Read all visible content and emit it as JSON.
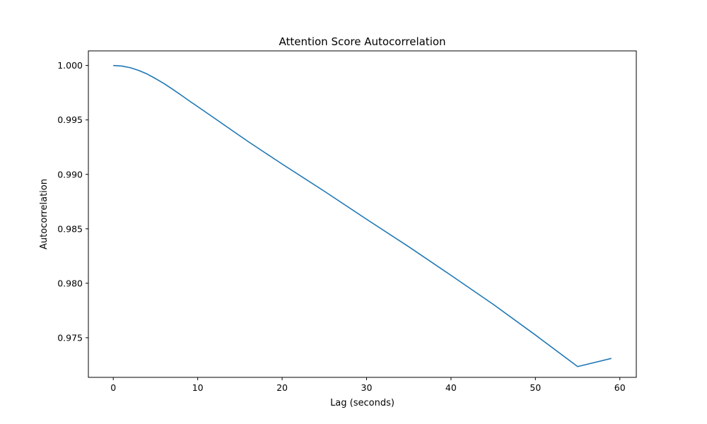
{
  "chart_data": {
    "type": "line",
    "title": "Attention Score Autocorrelation",
    "xlabel": "Lag (seconds)",
    "ylabel": "Autocorrelation",
    "xlim": [
      -2.95,
      61.95
    ],
    "ylim": [
      0.97136,
      1.00134
    ],
    "xticks": [
      0,
      10,
      20,
      30,
      40,
      50,
      60
    ],
    "yticks": [
      0.975,
      0.98,
      0.985,
      0.99,
      0.995,
      1.0
    ],
    "xtick_labels": [
      "0",
      "10",
      "20",
      "30",
      "40",
      "50",
      "60"
    ],
    "ytick_labels": [
      "0.975",
      "0.980",
      "0.985",
      "0.990",
      "0.995",
      "1.000"
    ],
    "grid": false,
    "line_color": "#1f77b4",
    "series": [
      {
        "x": [
          0,
          1,
          2,
          3,
          4,
          5,
          6,
          7,
          8,
          9,
          10,
          12,
          14,
          16,
          18,
          20,
          25,
          30,
          35,
          40,
          45,
          50,
          55,
          59
        ],
        "y": [
          1.0,
          0.99995,
          0.9998,
          0.99955,
          0.99922,
          0.9988,
          0.99834,
          0.99783,
          0.9973,
          0.99675,
          0.99622,
          0.99515,
          0.99407,
          0.993,
          0.99197,
          0.99095,
          0.98845,
          0.98588,
          0.98335,
          0.98073,
          0.97807,
          0.97525,
          0.97235,
          0.9731
        ]
      }
    ]
  }
}
